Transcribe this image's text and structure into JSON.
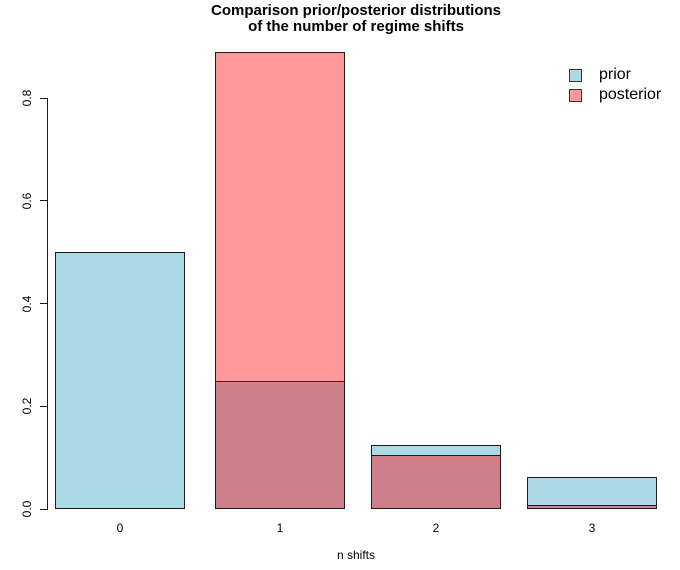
{
  "title": {
    "line1": "Comparison prior/posterior distributions",
    "line2": "of the number of regime shifts"
  },
  "legend": {
    "items": [
      {
        "label": "prior",
        "color": "#ADD8E6"
      },
      {
        "label": "posterior",
        "color": "#FF9999"
      }
    ]
  },
  "axes": {
    "x_label": "n shifts",
    "x_ticks": [
      "0",
      "1",
      "2",
      "3"
    ],
    "y_ticks": [
      "0.0",
      "0.2",
      "0.4",
      "0.6",
      "0.8"
    ]
  },
  "chart_data": {
    "type": "bar",
    "title": "Comparison prior/posterior distributions of the number of regime shifts",
    "xlabel": "n shifts",
    "ylabel": "",
    "categories": [
      "0",
      "1",
      "2",
      "3"
    ],
    "series": [
      {
        "name": "prior",
        "color": "#ADD8E6",
        "values": [
          0.5,
          0.25,
          0.125,
          0.0625
        ]
      },
      {
        "name": "posterior",
        "color": "rgba(255,0,0,0.4)",
        "flat_color": "#FF9999",
        "values": [
          0,
          0.89,
          0.105,
          0.0075
        ]
      }
    ],
    "overlaid_bars": true,
    "overlap_color": "#CE828A",
    "ylim": [
      0,
      0.9
    ],
    "y_tick_values": [
      0,
      0.2,
      0.4,
      0.6,
      0.8
    ],
    "grid": false,
    "legend_position": "top-right",
    "bar_border_color": "#1b1b1b"
  }
}
